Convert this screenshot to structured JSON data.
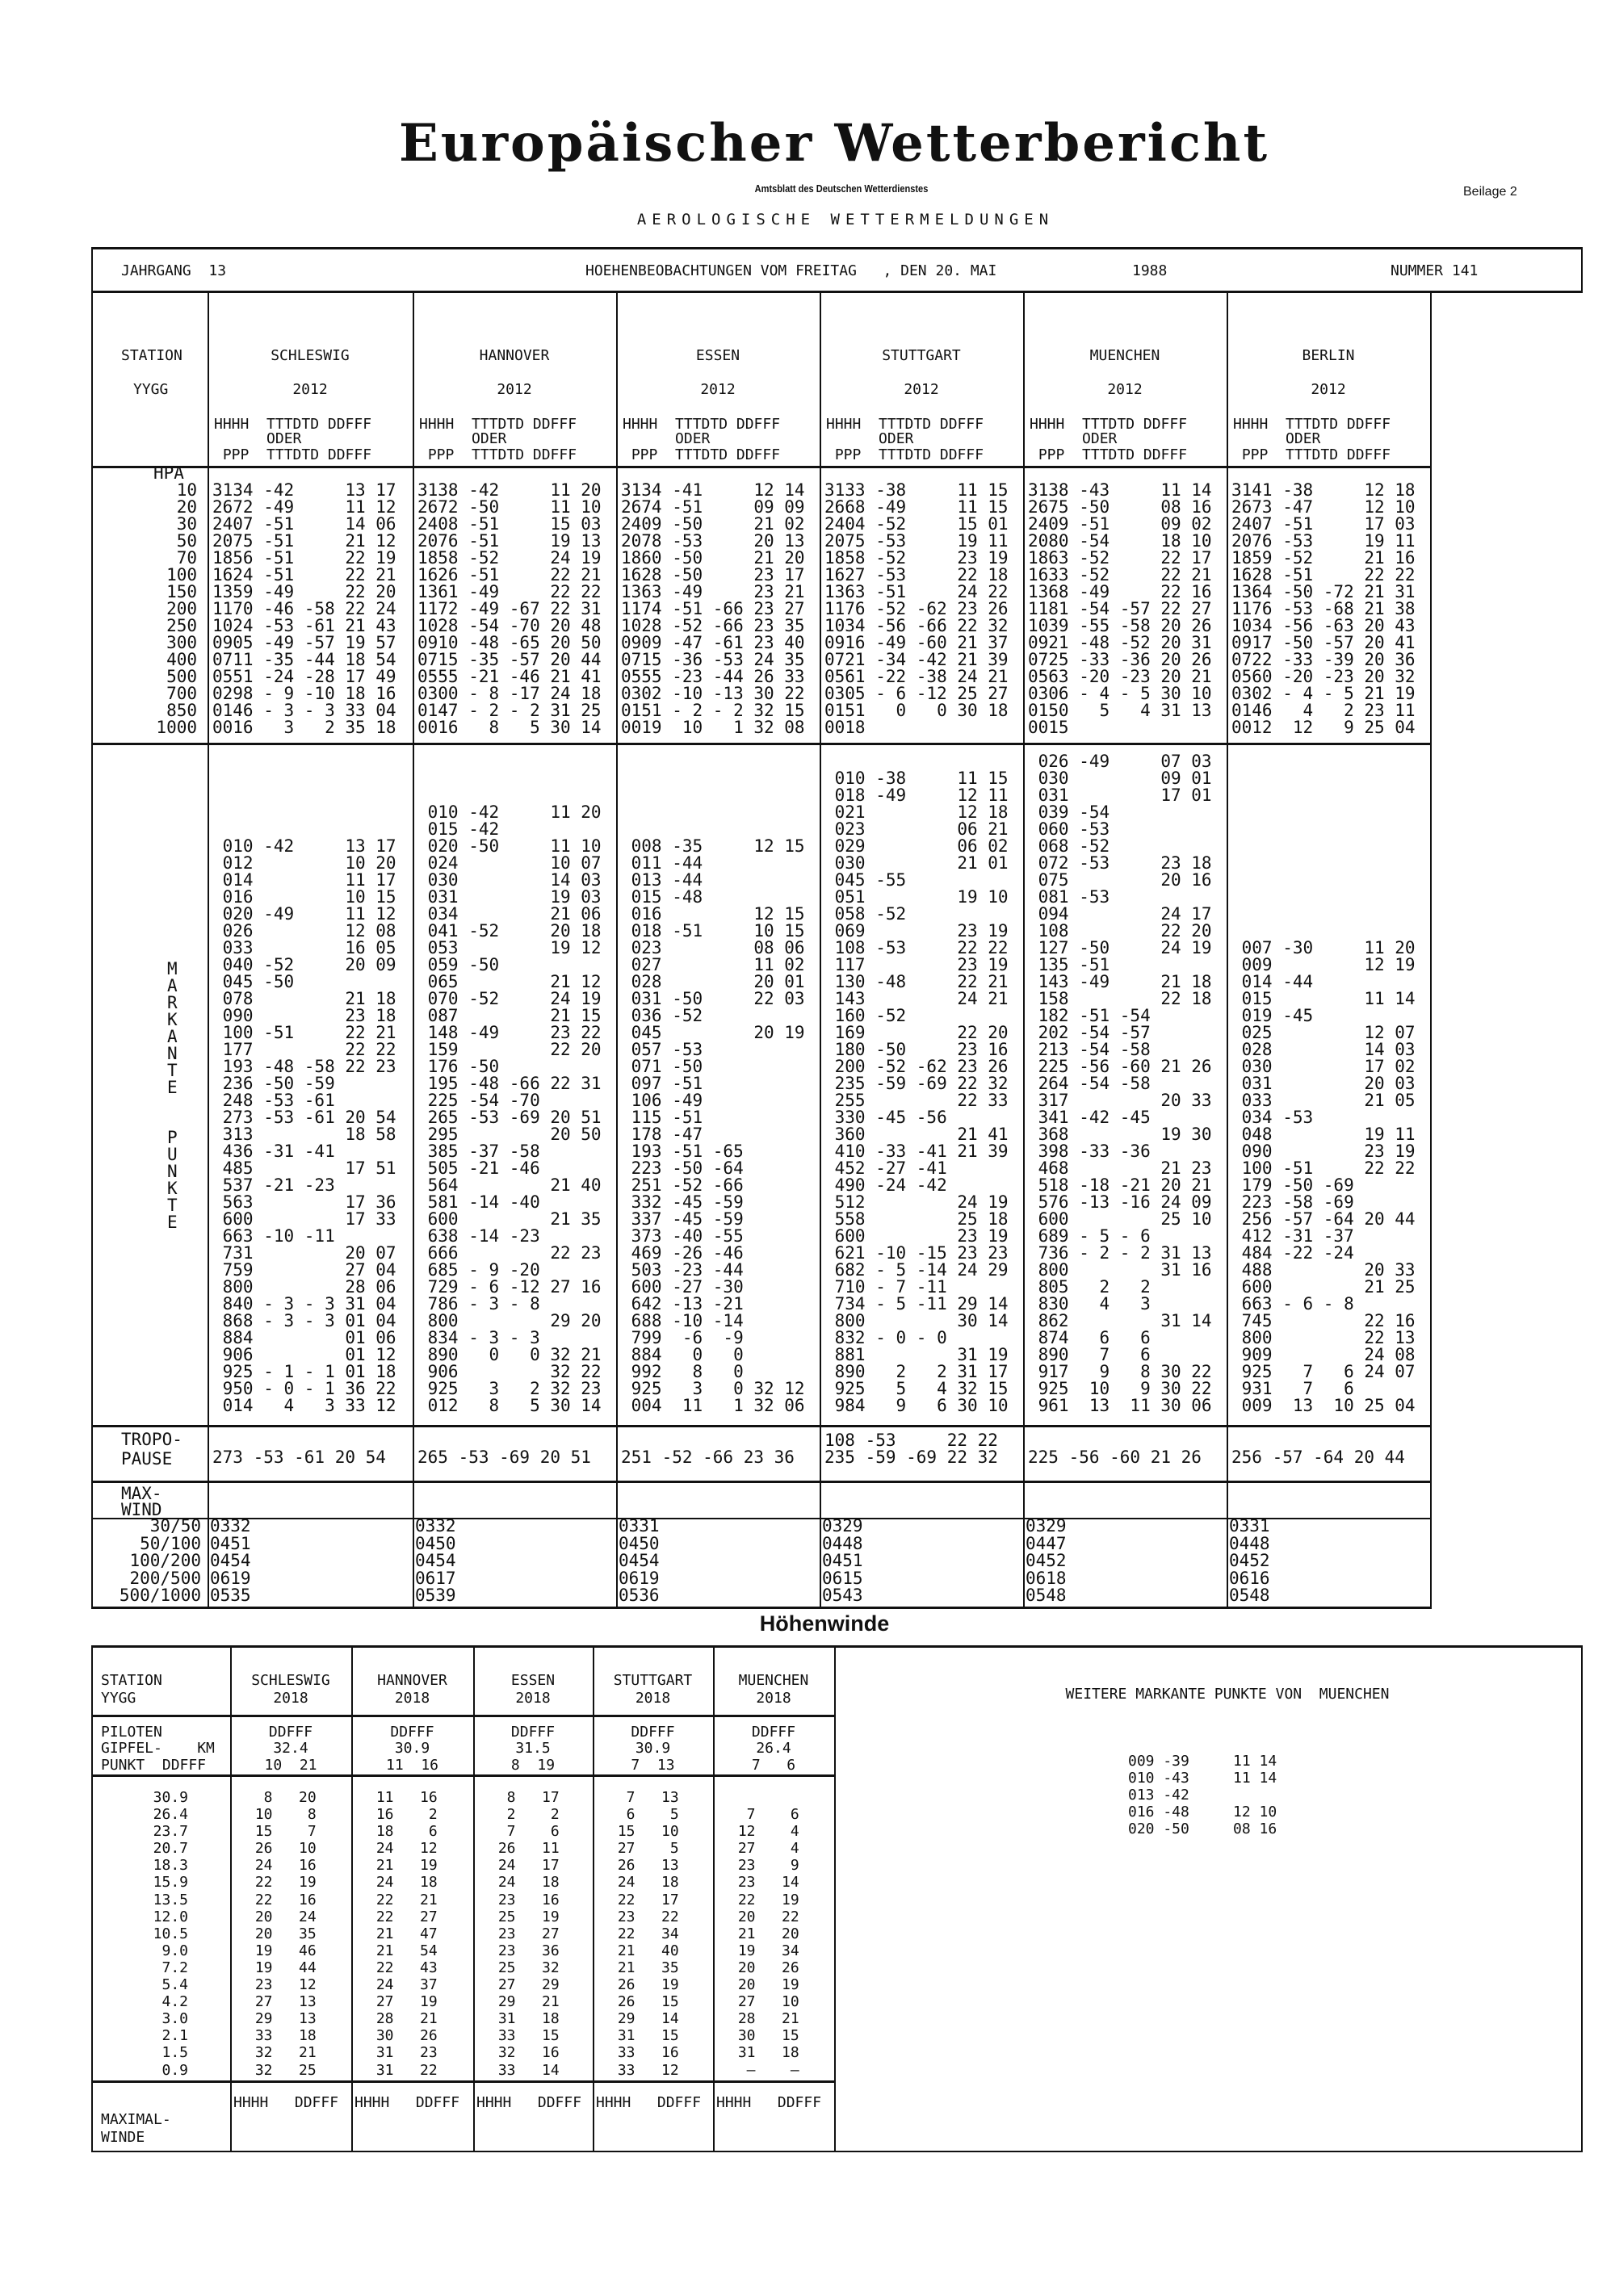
{
  "header": {
    "title": "Europäischer Wetterbericht",
    "subtitle": "Amtsblatt des Deutschen Wetterdienstes",
    "supplement": "Beilage 2",
    "section": "AEROLOGISCHE WETTERMELDUNGEN",
    "volume": "JAHRGANG  13",
    "observation": "HOEHENBEOBACHTUNGEN VOM FREITAG   , DEN 20. MAI",
    "year": "1988",
    "number": "NUMMER 141"
  },
  "labels": {
    "station": "STATION",
    "yygg": "YYGG",
    "field_line1": "HHHH  TTTDTD DDFFF",
    "field_line2": "      ODER",
    "field_line3": " PPP  TTTDTD DDFFF",
    "hpa": "HPA",
    "pressure_levels": [
      "10",
      "20",
      "30",
      "50",
      "70",
      "100",
      "150",
      "200",
      "250",
      "300",
      "400",
      "500",
      "700",
      "850",
      "1000"
    ],
    "markante": [
      "M",
      "A",
      "R",
      "K",
      "A",
      "N",
      "T",
      "E"
    ],
    "punkte": [
      "P",
      "U",
      "N",
      "K",
      "T",
      "E"
    ],
    "tropo1": "TROPO-",
    "tropo2": "PAUSE",
    "maxwind1": "MAX-",
    "maxwind2": "WIND",
    "maxwind_layers": [
      "30/50",
      "50/100",
      "100/200",
      "200/500",
      "500/1000"
    ]
  },
  "stations": [
    {
      "name": "SCHLESWIG",
      "yygg": "2012",
      "std": [
        "3134|-42||13|17",
        "2672|-49||11|12",
        "2407|-51||14|06",
        "2075|-51||21|12",
        "1856|-51||22|19",
        "1624|-51||22|21",
        "1359|-49||22|20",
        "1170|-46|-58|22|24",
        "1024|-53|-61|21|43",
        "0905|-49|-57|19|57",
        "0711|-35|-44|18|54",
        "0551|-24|-28|17|49",
        "0298|- 9|-10|18|16",
        "0146|- 3|- 3|33|04",
        "0016|3|2|35|18"
      ],
      "sig": [
        "010|-42||13|17",
        "012|||10|20",
        "014|||11|17",
        "016|||10|15",
        "020|-49||11|12",
        "026|||12|08",
        "033|||16|05",
        "040|-52||20|09",
        "045|-50|||",
        "078|||21|18",
        "090|||23|18",
        "100|-51||22|21",
        "177|||22|22",
        "193|-48|-58|22|23",
        "236|-50|-59||",
        "248|-53|-61||",
        "273|-53|-61|20|54",
        "313|||18|58",
        "436|-31|-41||",
        "485|||17|51",
        "537|-21|-23||",
        "563|||17|36",
        "600|||17|33",
        "663|-10|-11||",
        "731|||20|07",
        "759|||27|04",
        "800|||28|06",
        "840|- 3|- 3|31|04",
        "868|- 3|- 3|01|04",
        "884|||01|06",
        "906|||01|12",
        "925|- 1|- 1|01|18",
        "950|- 0|- 1|36|22",
        "014|4|3|33|12"
      ],
      "trop": [
        "273|-53|-61|20|54"
      ],
      "maxwind": [
        "0332",
        "0451",
        "0454",
        "0619",
        "0535"
      ]
    },
    {
      "name": "HANNOVER",
      "yygg": "2012",
      "std": [
        "3138|-42||11|20",
        "2672|-50||11|10",
        "2408|-51||15|03",
        "2076|-51||19|13",
        "1858|-52||24|19",
        "1626|-51||22|21",
        "1361|-49||22|22",
        "1172|-49|-67|22|31",
        "1028|-54|-70|20|48",
        "0910|-48|-65|20|50",
        "0715|-35|-57|20|44",
        "0555|-21|-46|21|41",
        "0300|- 8|-17|24|18",
        "0147|- 2|- 2|31|25",
        "0016|8|5|30|14"
      ],
      "sig": [
        "010|-42||11|20",
        "015|-42|||",
        "020|-50||11|10",
        "024|||10|07",
        "030|||14|03",
        "031|||19|03",
        "034|||21|06",
        "041|-52||20|18",
        "053|||19|12",
        "059|-50|||",
        "065|||21|12",
        "070|-52||24|19",
        "087|||21|15",
        "148|-49||23|22",
        "159|||22|20",
        "176|-50|||",
        "195|-48|-66|22|31",
        "225|-54|-70||",
        "265|-53|-69|20|51",
        "295|||20|50",
        "385|-37|-58||",
        "505|-21|-46||",
        "564|||21|40",
        "581|-14|-40||",
        "600|||21|35",
        "638|-14|-23||",
        "666|||22|23",
        "685|- 9|-20||",
        "729|- 6|-12|27|16",
        "786|- 3|- 8||",
        "800|||29|20",
        "834|- 3|- 3||",
        "890|0|0|32|21",
        "906|||32|22",
        "925|3|2|32|23",
        "012|8|5|30|14"
      ],
      "trop": [
        "265|-53|-69|20|51"
      ],
      "maxwind": [
        "0332",
        "0450",
        "0454",
        "0617",
        "0539"
      ]
    },
    {
      "name": "ESSEN",
      "yygg": "2012",
      "std": [
        "3134|-41||12|14",
        "2674|-51||09|09",
        "2409|-50||21|02",
        "2078|-53||20|13",
        "1860|-50||21|20",
        "1628|-50||23|17",
        "1363|-49||23|21",
        "1174|-51|-66|23|27",
        "1028|-52|-66|23|35",
        "0909|-47|-61|23|40",
        "0715|-36|-53|24|35",
        "0555|-23|-44|26|33",
        "0302|-10|-13|30|22",
        "0151|- 2|- 2|32|15",
        "0019|10|1|32|08"
      ],
      "sig": [
        "008|-35||12|15",
        "011|-44|||",
        "013|-44|||",
        "015|-48|||",
        "016|||12|15",
        "018|-51||10|15",
        "023|||08|06",
        "027|||11|02",
        "028|||20|01",
        "031|-50||22|03",
        "036|-52|||",
        "045|||20|19",
        "057|-53|||",
        "071|-50|||",
        "097|-51|||",
        "106|-49|||",
        "115|-51|||",
        "178|-47|||",
        "193|-51|-65||",
        "223|-50|-64||",
        "251|-52|-66||",
        "332|-45|-59||",
        "337|-45|-59||",
        "373|-40|-55||",
        "469|-26|-46||",
        "503|-23|-44||",
        "600|-27|-30||",
        "642|-13|-21||",
        "688|-10|-14||",
        "799|-6|-9||",
        "884|0|0||",
        "992|8|0||",
        "925|3|0|32|12",
        "004|11|1|32|06"
      ],
      "trop": [
        "251|-52|-66|23|36"
      ],
      "maxwind": [
        "0331",
        "0450",
        "0454",
        "0619",
        "0536"
      ]
    },
    {
      "name": "STUTTGART",
      "yygg": "2012",
      "std": [
        "3133|-38||11|15",
        "2668|-49||11|15",
        "2404|-52||15|01",
        "2075|-53||19|11",
        "1858|-52||23|19",
        "1627|-53||22|18",
        "1363|-51||24|22",
        "1176|-52|-62|23|26",
        "1034|-56|-66|22|32",
        "0916|-49|-60|21|37",
        "0721|-34|-42|21|39",
        "0561|-22|-38|24|21",
        "0305|- 6|-12|25|27",
        "0151|0|0|30|18",
        "0018||||"
      ],
      "sig": [
        "010|-38||11|15",
        "018|-49||12|11",
        "021|||12|18",
        "023|||06|21",
        "029|||06|02",
        "030|||21|01",
        "045|-55|||",
        "051|||19|10",
        "058|-52|||",
        "069|||23|19",
        "108|-53||22|22",
        "117|||23|19",
        "130|-48||22|21",
        "143|||24|21",
        "160|-52|||",
        "169|||22|20",
        "180|-50||23|16",
        "200|-52|-62|23|26",
        "235|-59|-69|22|32",
        "255|||22|33",
        "330|-45|-56||",
        "360|||21|41",
        "410|-33|-41|21|39",
        "452|-27|-41||",
        "490|-24|-42||",
        "512|||24|19",
        "558|||25|18",
        "600|||23|19",
        "621|-10|-15|23|23",
        "682|- 5|-14|24|29",
        "710|- 7|-11||",
        "734|- 5|-11|29|14",
        "800|||30|14",
        "832|- 0|- 0||",
        "881|||31|19",
        "890|2|2|31|17",
        "925|5|4|32|15",
        "984|9|6|30|10"
      ],
      "trop": [
        "108|-53||22|22",
        "235|-59|-69|22|32"
      ],
      "maxwind": [
        "0329",
        "0448",
        "0451",
        "0615",
        "0543"
      ]
    },
    {
      "name": "MUENCHEN",
      "yygg": "2012",
      "std": [
        "3138|-43||11|14",
        "2675|-50||08|16",
        "2409|-51||09|02",
        "2080|-54||18|10",
        "1863|-52||22|17",
        "1633|-52||22|21",
        "1368|-49||22|16",
        "1181|-54|-57|22|27",
        "1039|-55|-58|20|26",
        "0921|-48|-52|20|31",
        "0725|-33|-36|20|26",
        "0563|-20|-23|20|21",
        "0306|- 4|- 5|30|10",
        "0150|5|4|31|13",
        "0015||||"
      ],
      "sig": [
        "026|-49||07|03",
        "030|||09|01",
        "031|||17|01",
        "039|-54|||",
        "060|-53|||",
        "068|-52|||",
        "072|-53||23|18",
        "075|||20|16",
        "081|-53|||",
        "094|||24|17",
        "108|||22|20",
        "127|-50||24|19",
        "135|-51|||",
        "143|-49||21|18",
        "158|||22|18",
        "182|-51|-54||",
        "202|-54|-57||",
        "213|-54|-58||",
        "225|-56|-60|21|26",
        "264|-54|-58||",
        "317|||20|33",
        "341|-42|-45||",
        "368|||19|30",
        "398|-33|-36||",
        "468|||21|23",
        "518|-18|-21|20|21",
        "576|-13|-16|24|09",
        "600|||25|10",
        "689|- 5|- 6||",
        "736|- 2|- 2|31|13",
        "800|||31|16",
        "805|2|2||",
        "830|4|3||",
        "862|||31|14",
        "874|6|6||",
        "890|7|6||",
        "917|9|8|30|22",
        "925|10|9|30|22",
        "961|13|11|30|06"
      ],
      "trop": [
        "225|-56|-60|21|26"
      ],
      "maxwind": [
        "0329",
        "0447",
        "0452",
        "0618",
        "0548"
      ]
    },
    {
      "name": "BERLIN",
      "yygg": "2012",
      "std": [
        "3141|-38||12|18",
        "2673|-47||12|10",
        "2407|-51||17|03",
        "2076|-53||19|11",
        "1859|-52||21|16",
        "1628|-51||22|22",
        "1364|-50|-72|21|31",
        "1176|-53|-68|21|38",
        "1034|-56|-63|20|43",
        "0917|-50|-57|20|41",
        "0722|-33|-39|20|36",
        "0560|-20|-23|20|32",
        "0302|- 4|- 5|21|19",
        "0146|4|2|23|11",
        "0012|12|9|25|04"
      ],
      "sig": [
        "007|-30||11|20",
        "009|||12|19",
        "014|-44|||",
        "015|||11|14",
        "019|-45|||",
        "025|||12|07",
        "028|||14|03",
        "030|||17|02",
        "031|||20|03",
        "033|||21|05",
        "034|-53|||",
        "048|||19|11",
        "090|||23|19",
        "100|-51||22|22",
        "179|-50|-69||",
        "223|-58|-69||",
        "256|-57|-64|20|44",
        "412|-31|-37||",
        "484|-22|-24||",
        "488|||20|33",
        "600|||21|25",
        "663|- 6|- 8||",
        "745|||22|16",
        "800|||22|13",
        "909|||24|08",
        "925|7|6|24|07",
        "931|7|6||",
        "009|13|10|25|04"
      ],
      "trop": [
        "256|-57|-64|20|44"
      ],
      "maxwind": [
        "0331",
        "0448",
        "0452",
        "0616",
        "0548"
      ]
    }
  ],
  "hoehenwinde": {
    "title": "Höhenwinde",
    "station": "STATION",
    "yygg": "YYGG",
    "piloten1": "PILOTEN",
    "piloten2": "GIPFEL-    KM",
    "piloten3": "PUNKT  DDFFF",
    "maximal1": "MAXIMAL-",
    "maximal2": "WINDE",
    "maxwind_header": "HHHH   DDFFF",
    "heights": [
      "30.9",
      "26.4",
      "23.7",
      "20.7",
      "18.3",
      "15.9",
      "13.5",
      "12.0",
      "10.5",
      "9.0",
      "7.2",
      "5.4",
      "4.2",
      "3.0",
      "2.1",
      "1.5",
      "0.9"
    ],
    "stations": [
      {
        "name": "SCHLESWIG",
        "yygg": "2018",
        "ddfff": "DDFFF",
        "summit_km": "32.4",
        "summit_wind": "10  21",
        "winds": [
          "8|20",
          "10|8",
          "15|7",
          "26|10",
          "24|16",
          "22|19",
          "22|16",
          "20|24",
          "20|35",
          "19|46",
          "19|44",
          "23|12",
          "27|13",
          "29|13",
          "33|18",
          "32|21",
          "32|25"
        ]
      },
      {
        "name": "HANNOVER",
        "yygg": "2018",
        "ddfff": "DDFFF",
        "summit_km": "30.9",
        "summit_wind": "11  16",
        "winds": [
          "11|16",
          "16|2",
          "18|6",
          "24|12",
          "21|19",
          "24|18",
          "22|21",
          "22|27",
          "21|47",
          "21|54",
          "22|43",
          "24|37",
          "27|19",
          "28|21",
          "30|26",
          "31|23",
          "31|22"
        ]
      },
      {
        "name": "ESSEN",
        "yygg": "2018",
        "ddfff": "DDFFF",
        "summit_km": "31.5",
        "summit_wind": "8  19",
        "winds": [
          "8|17",
          "2|2",
          "7|6",
          "26|11",
          "24|17",
          "24|18",
          "23|16",
          "25|19",
          "23|27",
          "23|36",
          "25|32",
          "27|29",
          "29|21",
          "31|18",
          "33|15",
          "32|16",
          "33|14"
        ]
      },
      {
        "name": "STUTTGART",
        "yygg": "2018",
        "ddfff": "DDFFF",
        "summit_km": "30.9",
        "summit_wind": "7  13",
        "winds": [
          "7|13",
          "6|5",
          "15|10",
          "27|5",
          "26|13",
          "24|18",
          "22|17",
          "23|22",
          "22|34",
          "21|40",
          "21|35",
          "26|19",
          "26|15",
          "29|14",
          "31|15",
          "33|16",
          "33|12"
        ]
      },
      {
        "name": "MUENCHEN",
        "yygg": "2018",
        "ddfff": "DDFFF",
        "summit_km": "26.4",
        "summit_wind": "7   6",
        "winds": [
          "|",
          "7|6",
          "12|4",
          "27|4",
          "23|9",
          "23|14",
          "22|19",
          "20|22",
          "21|20",
          "19|34",
          "20|26",
          "20|19",
          "27|10",
          "28|21",
          "30|15",
          "31|18",
          "—|—"
        ]
      }
    ]
  },
  "weitere": {
    "title": "WEITERE MARKANTE PUNKTE VON  MUENCHEN",
    "rows": [
      "009|-39||11|14",
      "010|-43||11|14",
      "013|-42|||",
      "016|-48||12|10",
      "020|-50||08|16"
    ]
  }
}
